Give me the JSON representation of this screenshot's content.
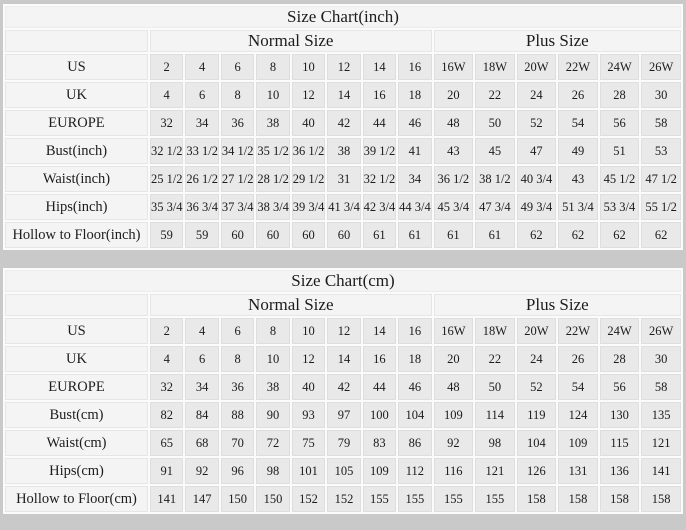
{
  "colors": {
    "page_background": "#c9c9c9",
    "table_background": "#fbfbfb",
    "header_cell_background": "#f4f4f4",
    "data_cell_background": "#e9e9e9",
    "text": "#1c1c1c"
  },
  "chart_data": [
    {
      "type": "table",
      "title": "Size Chart(inch)",
      "column_groups": [
        {
          "label": "Normal Size",
          "span": 8
        },
        {
          "label": "Plus Size",
          "span": 6
        }
      ],
      "rows": [
        {
          "label": "US",
          "values": [
            "2",
            "4",
            "6",
            "8",
            "10",
            "12",
            "14",
            "16",
            "16W",
            "18W",
            "20W",
            "22W",
            "24W",
            "26W"
          ]
        },
        {
          "label": "UK",
          "values": [
            "4",
            "6",
            "8",
            "10",
            "12",
            "14",
            "16",
            "18",
            "20",
            "22",
            "24",
            "26",
            "28",
            "30"
          ]
        },
        {
          "label": "EUROPE",
          "values": [
            "32",
            "34",
            "36",
            "38",
            "40",
            "42",
            "44",
            "46",
            "48",
            "50",
            "52",
            "54",
            "56",
            "58"
          ]
        },
        {
          "label": "Bust(inch)",
          "values": [
            "32 1/2",
            "33 1/2",
            "34 1/2",
            "35 1/2",
            "36 1/2",
            "38",
            "39 1/2",
            "41",
            "43",
            "45",
            "47",
            "49",
            "51",
            "53"
          ]
        },
        {
          "label": "Waist(inch)",
          "values": [
            "25 1/2",
            "26 1/2",
            "27 1/2",
            "28 1/2",
            "29 1/2",
            "31",
            "32 1/2",
            "34",
            "36 1/2",
            "38 1/2",
            "40 3/4",
            "43",
            "45 1/2",
            "47 1/2"
          ]
        },
        {
          "label": "Hips(inch)",
          "values": [
            "35 3/4",
            "36 3/4",
            "37 3/4",
            "38 3/4",
            "39 3/4",
            "41 3/4",
            "42 3/4",
            "44 3/4",
            "45 3/4",
            "47 3/4",
            "49 3/4",
            "51 3/4",
            "53 3/4",
            "55 1/2"
          ]
        },
        {
          "label": "Hollow to Floor(inch)",
          "values": [
            "59",
            "59",
            "60",
            "60",
            "60",
            "60",
            "61",
            "61",
            "61",
            "61",
            "62",
            "62",
            "62",
            "62"
          ]
        }
      ]
    },
    {
      "type": "table",
      "title": "Size Chart(cm)",
      "column_groups": [
        {
          "label": "Normal Size",
          "span": 8
        },
        {
          "label": "Plus Size",
          "span": 6
        }
      ],
      "rows": [
        {
          "label": "US",
          "values": [
            "2",
            "4",
            "6",
            "8",
            "10",
            "12",
            "14",
            "16",
            "16W",
            "18W",
            "20W",
            "22W",
            "24W",
            "26W"
          ]
        },
        {
          "label": "UK",
          "values": [
            "4",
            "6",
            "8",
            "10",
            "12",
            "14",
            "16",
            "18",
            "20",
            "22",
            "24",
            "26",
            "28",
            "30"
          ]
        },
        {
          "label": "EUROPE",
          "values": [
            "32",
            "34",
            "36",
            "38",
            "40",
            "42",
            "44",
            "46",
            "48",
            "50",
            "52",
            "54",
            "56",
            "58"
          ]
        },
        {
          "label": "Bust(cm)",
          "values": [
            "82",
            "84",
            "88",
            "90",
            "93",
            "97",
            "100",
            "104",
            "109",
            "114",
            "119",
            "124",
            "130",
            "135"
          ]
        },
        {
          "label": "Waist(cm)",
          "values": [
            "65",
            "68",
            "70",
            "72",
            "75",
            "79",
            "83",
            "86",
            "92",
            "98",
            "104",
            "109",
            "115",
            "121"
          ]
        },
        {
          "label": "Hips(cm)",
          "values": [
            "91",
            "92",
            "96",
            "98",
            "101",
            "105",
            "109",
            "112",
            "116",
            "121",
            "126",
            "131",
            "136",
            "141"
          ]
        },
        {
          "label": "Hollow to Floor(cm)",
          "values": [
            "141",
            "147",
            "150",
            "150",
            "152",
            "152",
            "155",
            "155",
            "155",
            "155",
            "158",
            "158",
            "158",
            "158"
          ]
        }
      ]
    }
  ]
}
